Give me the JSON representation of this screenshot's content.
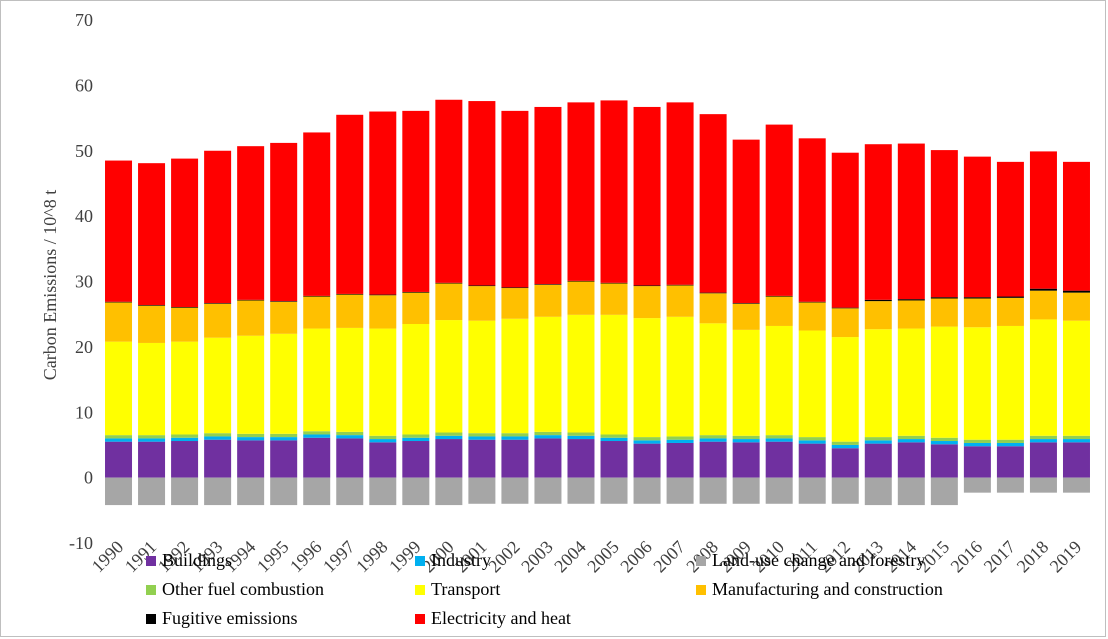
{
  "chart_data": {
    "type": "bar",
    "stacked": true,
    "title": "",
    "xlabel": "",
    "ylabel": "Carbon Emissions / 10^8 t",
    "ylim": [
      -10,
      70
    ],
    "yticks": [
      -10,
      0,
      10,
      20,
      30,
      40,
      50,
      60,
      70
    ],
    "categories": [
      "1990",
      "1991",
      "1992",
      "1993",
      "1994",
      "1995",
      "1996",
      "1997",
      "1998",
      "1999",
      "2000",
      "2001",
      "2002",
      "2003",
      "2004",
      "2005",
      "2006",
      "2007",
      "2008",
      "2009",
      "2010",
      "2011",
      "2012",
      "2013",
      "2014",
      "2015",
      "2016",
      "2017",
      "2018",
      "2019"
    ],
    "legend_position": "bottom",
    "series": [
      {
        "name": "Buildings",
        "color": "#7030A0",
        "values": [
          5.5,
          5.5,
          5.6,
          5.8,
          5.7,
          5.7,
          6.1,
          6.0,
          5.4,
          5.6,
          5.9,
          5.8,
          5.8,
          6.0,
          5.9,
          5.6,
          5.2,
          5.3,
          5.5,
          5.4,
          5.5,
          5.2,
          4.5,
          5.2,
          5.4,
          5.1,
          4.8,
          4.8,
          5.4,
          5.4
        ]
      },
      {
        "name": "Industry",
        "color": "#00B0F0",
        "values": [
          0.5,
          0.5,
          0.5,
          0.5,
          0.5,
          0.5,
          0.5,
          0.5,
          0.5,
          0.5,
          0.5,
          0.5,
          0.5,
          0.5,
          0.5,
          0.5,
          0.5,
          0.5,
          0.5,
          0.5,
          0.5,
          0.5,
          0.5,
          0.5,
          0.5,
          0.5,
          0.5,
          0.5,
          0.5,
          0.5
        ]
      },
      {
        "name": "Other fuel combustion",
        "color": "#92D050",
        "values": [
          0.5,
          0.5,
          0.5,
          0.5,
          0.5,
          0.5,
          0.5,
          0.5,
          0.5,
          0.5,
          0.5,
          0.5,
          0.5,
          0.5,
          0.5,
          0.5,
          0.5,
          0.5,
          0.5,
          0.5,
          0.5,
          0.5,
          0.5,
          0.5,
          0.5,
          0.5,
          0.5,
          0.5,
          0.5,
          0.5
        ]
      },
      {
        "name": "Transport",
        "color": "#FFFF00",
        "values": [
          14.3,
          14.1,
          14.2,
          14.6,
          15.0,
          15.3,
          15.7,
          15.9,
          16.4,
          16.9,
          17.2,
          17.2,
          17.5,
          17.6,
          18.0,
          18.3,
          18.2,
          18.3,
          17.1,
          16.2,
          16.7,
          16.3,
          16.0,
          16.5,
          16.4,
          17.0,
          17.2,
          17.4,
          17.8,
          17.6
        ]
      },
      {
        "name": "Manufacturing and construction",
        "color": "#FFC000",
        "values": [
          6.0,
          5.7,
          5.2,
          5.2,
          5.4,
          4.9,
          4.9,
          5.1,
          5.1,
          4.8,
          5.6,
          5.3,
          4.7,
          4.9,
          5.1,
          4.8,
          4.9,
          4.8,
          4.6,
          4.0,
          4.5,
          4.3,
          4.4,
          4.3,
          4.3,
          4.3,
          4.4,
          4.3,
          4.4,
          4.3
        ]
      },
      {
        "name": "Fugitive emissions",
        "color": "#000000",
        "values": [
          0.1,
          0.1,
          0.1,
          0.1,
          0.1,
          0.1,
          0.1,
          0.1,
          0.1,
          0.1,
          0.1,
          0.1,
          0.1,
          0.1,
          0.1,
          0.1,
          0.1,
          0.1,
          0.1,
          0.1,
          0.1,
          0.1,
          0.1,
          0.2,
          0.2,
          0.2,
          0.2,
          0.2,
          0.3,
          0.3
        ]
      },
      {
        "name": "Electricity and heat",
        "color": "#FF0000",
        "values": [
          21.6,
          21.7,
          22.7,
          23.3,
          23.5,
          24.2,
          25.0,
          27.4,
          28.0,
          27.7,
          28.0,
          28.2,
          27.0,
          27.1,
          27.3,
          27.9,
          27.3,
          27.9,
          27.3,
          25.0,
          26.2,
          25.0,
          23.7,
          23.8,
          23.8,
          22.5,
          21.5,
          20.6,
          21.0,
          19.7
        ]
      },
      {
        "name": "Land-use change and forestry",
        "color": "#A6A6A6",
        "values": [
          -4.2,
          -4.2,
          -4.2,
          -4.2,
          -4.2,
          -4.2,
          -4.2,
          -4.2,
          -4.2,
          -4.2,
          -4.2,
          -4.0,
          -4.0,
          -4.0,
          -4.0,
          -4.0,
          -4.0,
          -4.0,
          -4.0,
          -4.0,
          -4.0,
          -4.0,
          -4.0,
          -4.2,
          -4.2,
          -4.2,
          -2.3,
          -2.3,
          -2.3,
          -2.3
        ]
      }
    ]
  },
  "legend": {
    "items": [
      {
        "label": "Buildings",
        "color": "#7030A0",
        "icon": "purple-square-icon"
      },
      {
        "label": "Industry",
        "color": "#00B0F0",
        "icon": "blue-square-icon"
      },
      {
        "label": "Land-use change and forestry",
        "color": "#A6A6A6",
        "icon": "gray-square-icon"
      },
      {
        "label": "Other fuel combustion",
        "color": "#92D050",
        "icon": "green-square-icon"
      },
      {
        "label": "Transport",
        "color": "#FFFF00",
        "icon": "yellow-square-icon"
      },
      {
        "label": "Manufacturing and construction",
        "color": "#FFC000",
        "icon": "orange-square-icon"
      },
      {
        "label": "Fugitive emissions",
        "color": "#000000",
        "icon": "black-square-icon"
      },
      {
        "label": "Electricity and heat",
        "color": "#FF0000",
        "icon": "red-square-icon"
      }
    ]
  }
}
